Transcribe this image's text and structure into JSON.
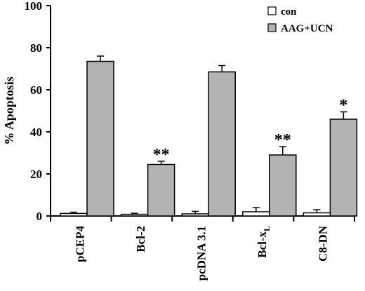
{
  "chart_data": {
    "type": "bar",
    "ylabel": "% Apoptosis",
    "ylim": [
      0,
      100
    ],
    "yticks": [
      "0",
      "20",
      "40",
      "60",
      "80",
      "100"
    ],
    "categories": [
      "pCEP4",
      "Bcl-2",
      "pcDNA 3.1",
      "Bcl-x",
      "C8-DN"
    ],
    "category_subscripts": [
      "",
      "",
      "",
      "L",
      ""
    ],
    "series": [
      {
        "name": "con",
        "color": "#ffffff",
        "values": [
          1.2,
          0.8,
          1.0,
          2.0,
          1.5
        ],
        "errors": [
          0.6,
          0.5,
          1.2,
          2.0,
          1.5
        ]
      },
      {
        "name": "AAG+UCN",
        "color": "#b3b3b3",
        "values": [
          73.5,
          24.5,
          68.5,
          29.0,
          46.0
        ],
        "errors": [
          2.5,
          1.5,
          3.0,
          4.0,
          3.5
        ]
      }
    ],
    "significance": [
      "",
      "**",
      "",
      "**",
      "*"
    ],
    "legend_position": "top-right",
    "grid": false
  }
}
